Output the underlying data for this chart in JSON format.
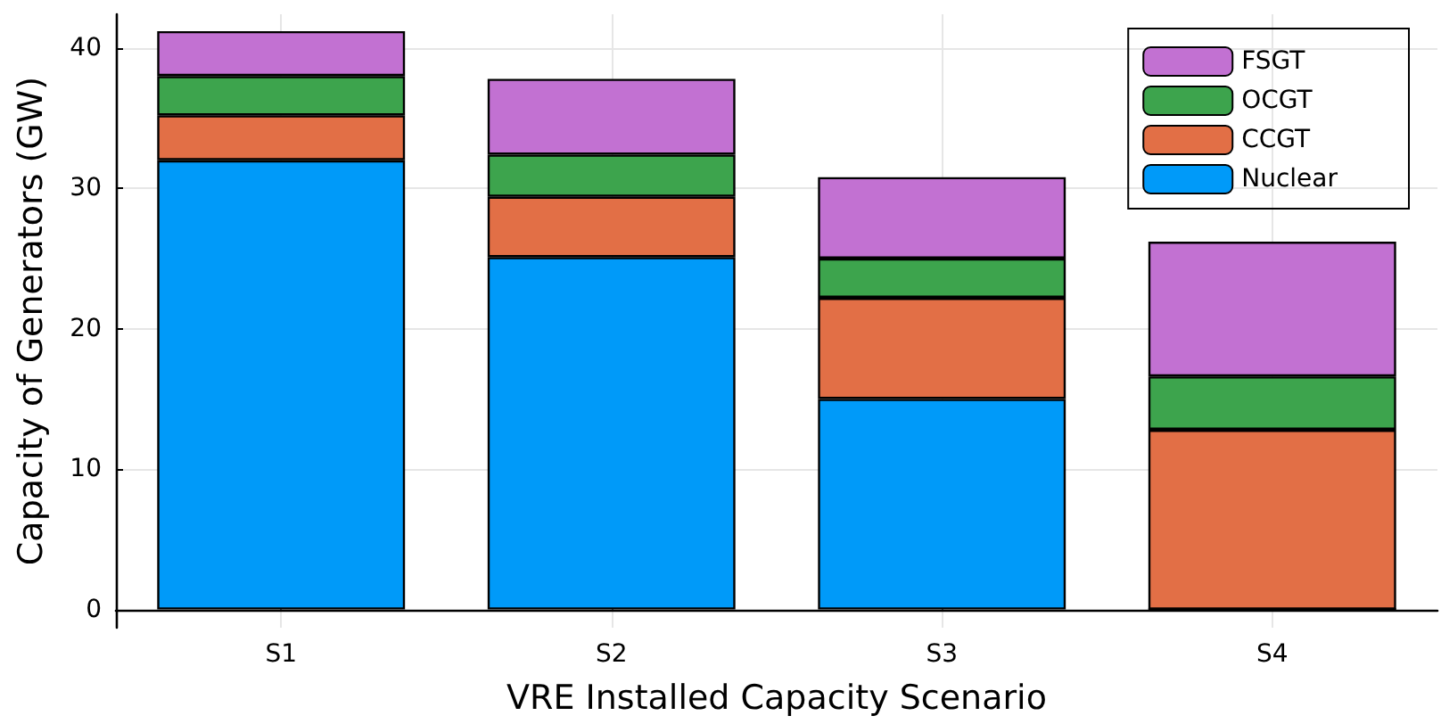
{
  "chart_data": {
    "type": "bar",
    "stacked": true,
    "xlabel": "VRE Installed Capacity Scenario",
    "ylabel": "Capacity of Generators (GW)",
    "categories": [
      "S1",
      "S2",
      "S3",
      "S4"
    ],
    "series": [
      {
        "name": "Nuclear",
        "color": "#009af9",
        "values": [
          32.0,
          25.1,
          15.0,
          0
        ]
      },
      {
        "name": "CCGT",
        "color": "#e26f46",
        "values": [
          3.2,
          4.3,
          7.2,
          12.8
        ]
      },
      {
        "name": "OCGT",
        "color": "#3da44d",
        "values": [
          2.8,
          3.0,
          2.8,
          3.8
        ]
      },
      {
        "name": "FSGT",
        "color": "#c271d2",
        "values": [
          3.2,
          5.4,
          5.8,
          9.6
        ]
      }
    ],
    "ylim": [
      -1.3,
      42.4
    ],
    "yticks": [
      0,
      10,
      20,
      30,
      40
    ],
    "grid": true,
    "legend": "top right"
  }
}
